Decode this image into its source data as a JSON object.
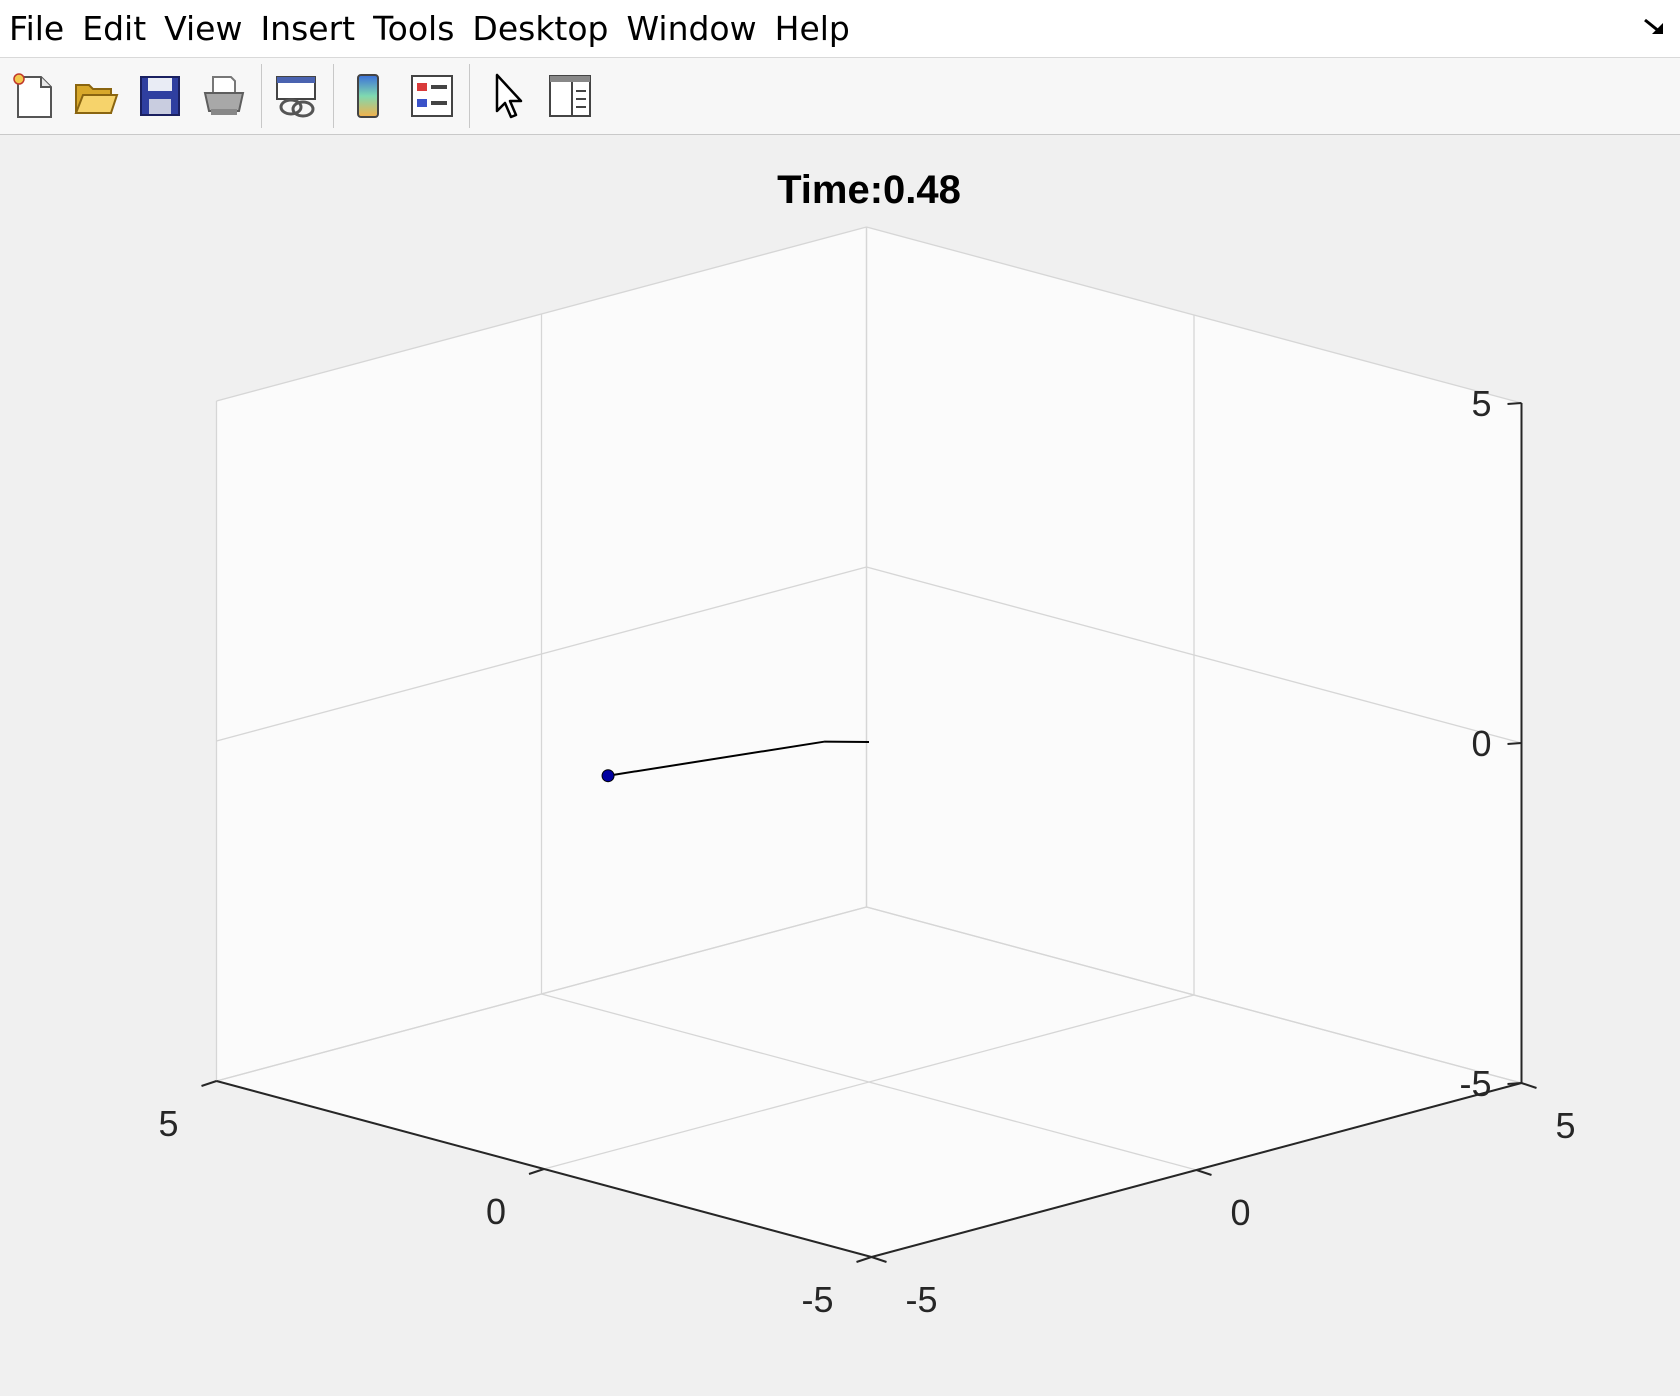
{
  "menu": {
    "items": [
      "File",
      "Edit",
      "View",
      "Insert",
      "Tools",
      "Desktop",
      "Window",
      "Help"
    ]
  },
  "toolbar": {
    "buttons": [
      {
        "name": "new-figure-button",
        "icon": "new-file-icon"
      },
      {
        "name": "open-file-button",
        "icon": "open-folder-icon"
      },
      {
        "name": "save-figure-button",
        "icon": "floppy-disk-icon"
      },
      {
        "name": "print-figure-button",
        "icon": "printer-icon"
      },
      {
        "name": "link-plot-button",
        "icon": "link-plot-icon"
      },
      {
        "name": "insert-colorbar-button",
        "icon": "colorbar-icon"
      },
      {
        "name": "insert-legend-button",
        "icon": "legend-icon"
      },
      {
        "name": "edit-plot-button",
        "icon": "pointer-arrow-icon"
      },
      {
        "name": "show-plot-tools-button",
        "icon": "plot-tools-icon"
      }
    ]
  },
  "colors": {
    "figure_bg": "#f0f0f0",
    "axes_bg": "#fbfbfb",
    "grid": "#d6d6d6",
    "axis": "#262626",
    "line": "#000000",
    "marker": "#0000a0"
  },
  "chart_data": {
    "type": "line",
    "projection": "3d",
    "title": "Time:0.48",
    "xlim": [
      -5,
      5
    ],
    "ylim": [
      -5,
      5
    ],
    "zlim": [
      -5,
      5
    ],
    "xticks": [
      "-5",
      "0",
      "5"
    ],
    "yticks": [
      "-5",
      "0",
      "5"
    ],
    "zticks": [
      "-5",
      "0",
      "5"
    ],
    "grid": true,
    "series": [
      {
        "points": [
          [
            0,
            0,
            0
          ],
          [
            -1.1,
            -1.8,
            0.75
          ],
          [
            1.9,
            -2.1,
            -0.45
          ]
        ],
        "marker_at_end": true
      }
    ]
  }
}
